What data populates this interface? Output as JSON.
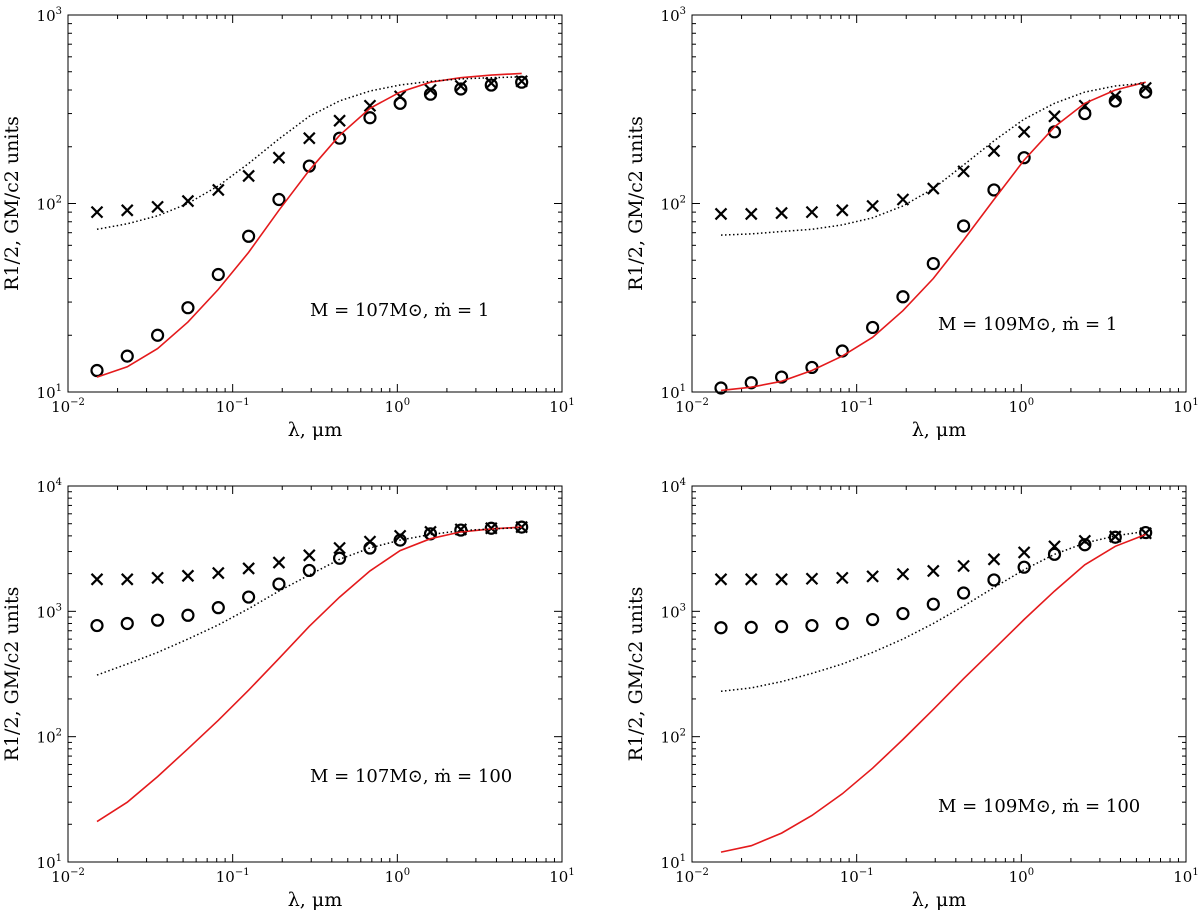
{
  "chart_data": [
    {
      "type": "scatter",
      "panel": "top-left",
      "log_x": true,
      "log_y": true,
      "xlim": [
        0.01,
        10
      ],
      "ylim": [
        10,
        1000
      ],
      "xticks": [
        "10",
        "10",
        "10",
        "10"
      ],
      "xticks_exp": [
        "−2",
        "−1",
        "0",
        "1"
      ],
      "yticks": [
        "10",
        "10",
        "10"
      ],
      "yticks_exp": [
        "1",
        "2",
        "3"
      ],
      "xlabel": "λ, μm",
      "ylabel": "R1/2, GM/c2 units",
      "annotation": "M = 107M⊙, ṁ = 1",
      "x": [
        0.015,
        0.0229,
        0.035,
        0.0535,
        0.0818,
        0.125,
        0.191,
        0.292,
        0.446,
        0.682,
        1.04,
        1.59,
        2.43,
        3.72,
        5.69
      ],
      "series": [
        {
          "marker": "x",
          "color": "#000000",
          "values": [
            90,
            92,
            96,
            103,
            118,
            140,
            175,
            222,
            275,
            330,
            370,
            400,
            420,
            435,
            445
          ]
        },
        {
          "marker": "o",
          "color": "#000000",
          "values": [
            13,
            15.5,
            20,
            28,
            42,
            67,
            105,
            158,
            222,
            285,
            340,
            380,
            405,
            425,
            440
          ]
        },
        {
          "line": "solid",
          "color": "#e41a1c",
          "values": [
            12,
            13.6,
            17,
            23.5,
            35,
            55,
            92,
            150,
            230,
            320,
            390,
            440,
            465,
            480,
            490
          ]
        },
        {
          "line": "dotted",
          "color": "#000000",
          "values": [
            73,
            78,
            86,
            100,
            124,
            163,
            220,
            290,
            350,
            395,
            425,
            445,
            458,
            465,
            470
          ]
        }
      ]
    },
    {
      "type": "scatter",
      "panel": "top-right",
      "log_x": true,
      "log_y": true,
      "xlim": [
        0.01,
        10
      ],
      "ylim": [
        10,
        1000
      ],
      "xticks": [
        "10",
        "10",
        "10",
        "10"
      ],
      "xticks_exp": [
        "−2",
        "−1",
        "0",
        "1"
      ],
      "yticks": [
        "10",
        "10",
        "10"
      ],
      "yticks_exp": [
        "1",
        "2",
        "3"
      ],
      "xlabel": "λ, μm",
      "ylabel": "R1/2, GM/c2 units",
      "annotation": "M = 109M⊙, ṁ = 1",
      "x": [
        0.015,
        0.0229,
        0.035,
        0.0535,
        0.0818,
        0.125,
        0.191,
        0.292,
        0.446,
        0.682,
        1.04,
        1.59,
        2.43,
        3.72,
        5.69
      ],
      "series": [
        {
          "marker": "x",
          "color": "#000000",
          "values": [
            88,
            88,
            89,
            90,
            92,
            97,
            105,
            120,
            148,
            190,
            240,
            290,
            330,
            370,
            410
          ]
        },
        {
          "marker": "o",
          "color": "#000000",
          "values": [
            10.5,
            11.2,
            12,
            13.5,
            16.5,
            22,
            32,
            48,
            76,
            118,
            175,
            240,
            300,
            350,
            390
          ]
        },
        {
          "line": "solid",
          "color": "#e41a1c",
          "values": [
            10.2,
            10.6,
            11.4,
            13,
            15.5,
            19.5,
            27,
            40,
            64,
            105,
            170,
            255,
            340,
            400,
            440
          ]
        },
        {
          "line": "dotted",
          "color": "#000000",
          "values": [
            68,
            69,
            71,
            73,
            77,
            84,
            97,
            120,
            160,
            215,
            280,
            340,
            390,
            420,
            435
          ]
        }
      ]
    },
    {
      "type": "scatter",
      "panel": "bottom-left",
      "log_x": true,
      "log_y": true,
      "xlim": [
        0.01,
        10
      ],
      "ylim": [
        10,
        10000
      ],
      "xticks": [
        "10",
        "10",
        "10",
        "10"
      ],
      "xticks_exp": [
        "−2",
        "−1",
        "0",
        "1"
      ],
      "yticks": [
        "10",
        "10",
        "10",
        "10"
      ],
      "yticks_exp": [
        "1",
        "2",
        "3",
        "4"
      ],
      "xlabel": "λ, μm",
      "ylabel": "R1/2, GM/c2 units",
      "annotation": "M = 107M⊙, ṁ = 100",
      "x": [
        0.015,
        0.0229,
        0.035,
        0.0535,
        0.0818,
        0.125,
        0.191,
        0.292,
        0.446,
        0.682,
        1.04,
        1.59,
        2.43,
        3.72,
        5.69
      ],
      "series": [
        {
          "marker": "x",
          "color": "#000000",
          "values": [
            1800,
            1800,
            1850,
            1920,
            2020,
            2200,
            2450,
            2800,
            3200,
            3600,
            4000,
            4300,
            4500,
            4600,
            4700
          ]
        },
        {
          "marker": "o",
          "color": "#000000",
          "values": [
            770,
            800,
            850,
            930,
            1070,
            1300,
            1650,
            2120,
            2650,
            3200,
            3700,
            4150,
            4450,
            4600,
            4700
          ]
        },
        {
          "line": "solid",
          "color": "#e41a1c",
          "values": [
            21,
            30,
            48,
            80,
            135,
            235,
            420,
            760,
            1300,
            2100,
            3050,
            3800,
            4300,
            4550,
            4700
          ]
        },
        {
          "line": "dotted",
          "color": "#000000",
          "values": [
            310,
            380,
            470,
            600,
            780,
            1050,
            1450,
            1950,
            2600,
            3200,
            3700,
            4100,
            4400,
            4550,
            4650
          ]
        }
      ]
    },
    {
      "type": "scatter",
      "panel": "bottom-right",
      "log_x": true,
      "log_y": true,
      "xlim": [
        0.01,
        10
      ],
      "ylim": [
        10,
        10000
      ],
      "xticks": [
        "10",
        "10",
        "10",
        "10"
      ],
      "xticks_exp": [
        "−2",
        "−1",
        "0",
        "1"
      ],
      "yticks": [
        "10",
        "10",
        "10",
        "10"
      ],
      "yticks_exp": [
        "1",
        "2",
        "3",
        "4"
      ],
      "xlabel": "λ, μm",
      "ylabel": "R1/2, GM/c2 units",
      "annotation": "M = 109M⊙, ṁ = 100",
      "x": [
        0.015,
        0.0229,
        0.035,
        0.0535,
        0.0818,
        0.125,
        0.191,
        0.292,
        0.446,
        0.682,
        1.04,
        1.59,
        2.43,
        3.72,
        5.69
      ],
      "series": [
        {
          "marker": "x",
          "color": "#000000",
          "values": [
            1800,
            1800,
            1800,
            1820,
            1850,
            1900,
            1980,
            2100,
            2300,
            2600,
            2950,
            3300,
            3650,
            3950,
            4200
          ]
        },
        {
          "marker": "o",
          "color": "#000000",
          "values": [
            740,
            745,
            755,
            770,
            800,
            860,
            960,
            1140,
            1400,
            1780,
            2250,
            2850,
            3400,
            3900,
            4250
          ]
        },
        {
          "line": "solid",
          "color": "#e41a1c",
          "values": [
            12,
            13.5,
            17,
            23.5,
            35,
            56,
            95,
            165,
            290,
            500,
            860,
            1450,
            2350,
            3300,
            4100
          ]
        },
        {
          "line": "dotted",
          "color": "#000000",
          "values": [
            230,
            245,
            275,
            320,
            380,
            470,
            600,
            800,
            1100,
            1550,
            2150,
            2850,
            3500,
            4000,
            4350
          ]
        }
      ]
    }
  ]
}
